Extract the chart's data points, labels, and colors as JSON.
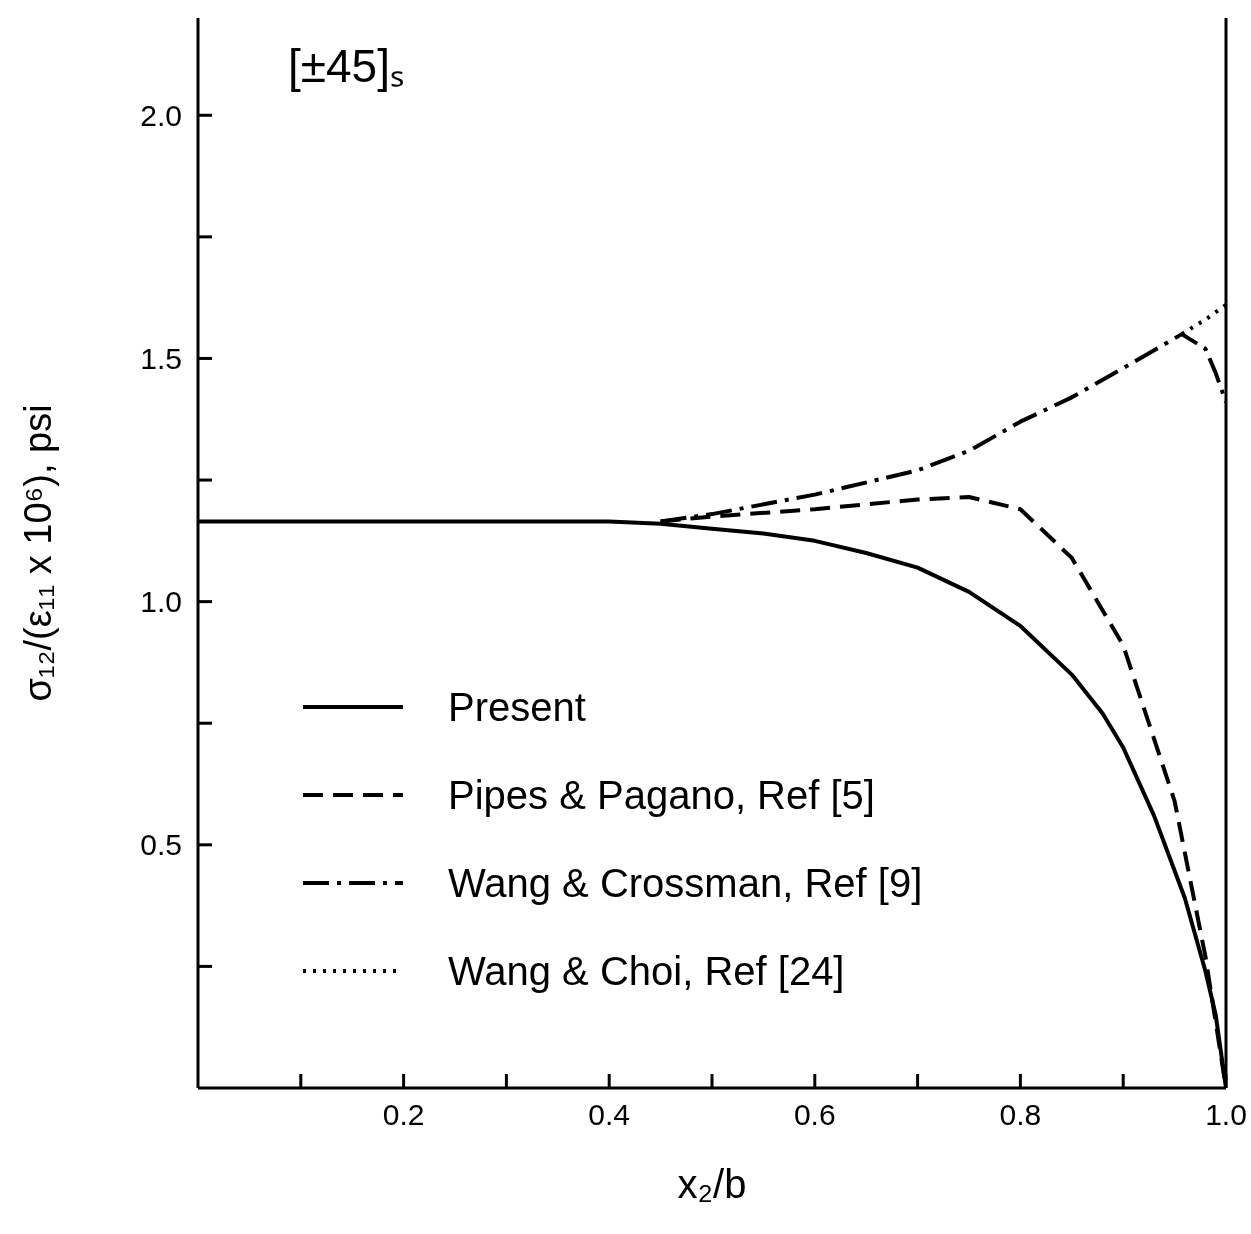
{
  "chart_data": {
    "type": "line",
    "xlabel": "x₂/b",
    "ylabel": "σ₁₂/(ε₁₁ x 10⁶), psi",
    "annotations": [
      "[±45]ₛ"
    ],
    "xlim": [
      0,
      1
    ],
    "xticks": [
      {
        "value": 0.1,
        "label": null
      },
      {
        "value": 0.2,
        "label": "0.2"
      },
      {
        "value": 0.3,
        "label": null
      },
      {
        "value": 0.4,
        "label": "0.4"
      },
      {
        "value": 0.5,
        "label": null
      },
      {
        "value": 0.6,
        "label": "0.6"
      },
      {
        "value": 0.7,
        "label": null
      },
      {
        "value": 0.8,
        "label": "0.8"
      },
      {
        "value": 0.9,
        "label": null
      },
      {
        "value": 1,
        "label": "1.0"
      }
    ],
    "ylim": [
      0,
      2.2
    ],
    "yticks": [
      {
        "value": 0.25,
        "label": null
      },
      {
        "value": 0.5,
        "label": "0.5"
      },
      {
        "value": 0.75,
        "label": null
      },
      {
        "value": 1,
        "label": "1.0"
      },
      {
        "value": 1.25,
        "label": null
      },
      {
        "value": 1.5,
        "label": "1.5"
      },
      {
        "value": 1.75,
        "label": null
      },
      {
        "value": 2,
        "label": "2.0"
      }
    ],
    "grid": false,
    "legend": "bottom left",
    "marker": "none",
    "series": [
      {
        "name": "Present",
        "color": "#000000",
        "line_style": "solid",
        "x": [
          0,
          0.4,
          0.45,
          0.5,
          0.55,
          0.6,
          0.65,
          0.7,
          0.75,
          0.8,
          0.85,
          0.88,
          0.9,
          0.93,
          0.96,
          0.98,
          0.99,
          1.0
        ],
        "values": [
          1.165,
          1.165,
          1.16,
          1.15,
          1.14,
          1.125,
          1.1,
          1.07,
          1.02,
          0.95,
          0.85,
          0.77,
          0.7,
          0.56,
          0.39,
          0.24,
          0.15,
          0
        ]
      },
      {
        "name": "Pipes & Pagano, Ref [5]",
        "color": "#000000",
        "line_style": "dashed",
        "x": [
          0.45,
          0.5,
          0.6,
          0.7,
          0.75,
          0.8,
          0.85,
          0.9,
          0.95,
          0.98,
          1.0
        ],
        "values": [
          1.165,
          1.175,
          1.19,
          1.21,
          1.215,
          1.19,
          1.09,
          0.91,
          0.59,
          0.27,
          0
        ]
      },
      {
        "name": "Wang & Crossman, Ref [9]",
        "color": "#000000",
        "line_style": "dashdot",
        "x": [
          0.45,
          0.5,
          0.6,
          0.7,
          0.75,
          0.8,
          0.85,
          0.9,
          0.957,
          0.98,
          0.99,
          1.0
        ],
        "values": [
          1.165,
          1.18,
          1.22,
          1.27,
          1.31,
          1.37,
          1.42,
          1.48,
          1.55,
          1.52,
          1.47,
          1.41
        ]
      },
      {
        "name": "Wang & Choi, Ref [24]",
        "color": "#000000",
        "line_style": "dotted",
        "x": [
          0.957,
          0.98,
          1.0
        ],
        "values": [
          1.55,
          1.58,
          1.61
        ]
      }
    ]
  }
}
